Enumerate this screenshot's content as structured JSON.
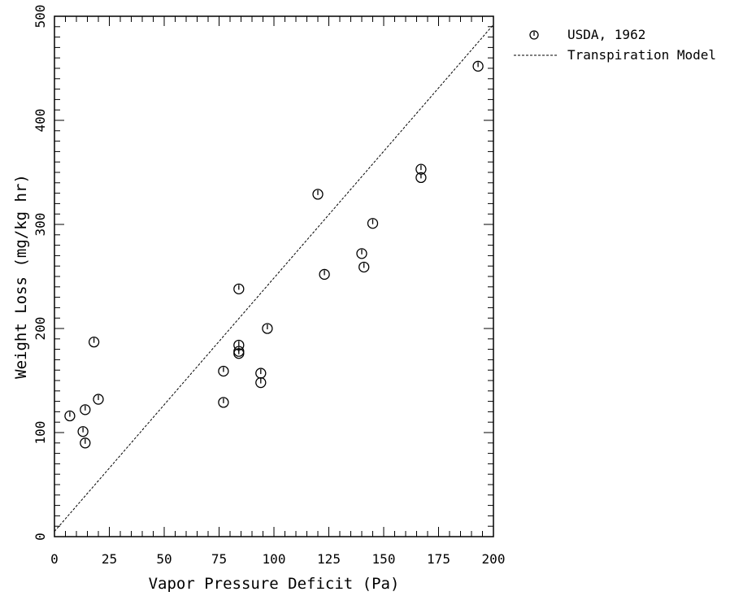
{
  "chart_data": {
    "type": "scatter",
    "xlabel": "Vapor Pressure Deficit (Pa)",
    "ylabel": "Weight Loss (mg/kg hr)",
    "xlim": [
      0,
      200
    ],
    "ylim": [
      0,
      500
    ],
    "xticks": [
      0,
      25,
      50,
      75,
      100,
      125,
      150,
      175,
      200
    ],
    "xtick_labels": [
      "0",
      "25",
      "50",
      "75",
      "100",
      "125",
      "150",
      "175",
      "200"
    ],
    "yticks": [
      0,
      100,
      200,
      300,
      400,
      500
    ],
    "ytick_labels": [
      "0",
      "100",
      "200",
      "300",
      "400",
      "500"
    ],
    "grid": false,
    "legend_position": "top-right outside",
    "series": [
      {
        "name": "USDA, 1962",
        "marker": "circle",
        "points": [
          {
            "x": 7,
            "y": 116
          },
          {
            "x": 13,
            "y": 101
          },
          {
            "x": 14,
            "y": 90
          },
          {
            "x": 14,
            "y": 122
          },
          {
            "x": 18,
            "y": 187
          },
          {
            "x": 20,
            "y": 132
          },
          {
            "x": 77,
            "y": 129
          },
          {
            "x": 77,
            "y": 159
          },
          {
            "x": 84,
            "y": 176
          },
          {
            "x": 84,
            "y": 178
          },
          {
            "x": 84,
            "y": 184
          },
          {
            "x": 84,
            "y": 238
          },
          {
            "x": 94,
            "y": 148
          },
          {
            "x": 94,
            "y": 157
          },
          {
            "x": 97,
            "y": 200
          },
          {
            "x": 120,
            "y": 329
          },
          {
            "x": 123,
            "y": 252
          },
          {
            "x": 140,
            "y": 272
          },
          {
            "x": 141,
            "y": 259
          },
          {
            "x": 145,
            "y": 301
          },
          {
            "x": 167,
            "y": 345
          },
          {
            "x": 167,
            "y": 353
          },
          {
            "x": 193,
            "y": 452
          }
        ]
      },
      {
        "name": "Transpiration Model",
        "style": "dashed line",
        "points": [
          {
            "x": 0,
            "y": 5
          },
          {
            "x": 200,
            "y": 492
          }
        ]
      }
    ]
  }
}
